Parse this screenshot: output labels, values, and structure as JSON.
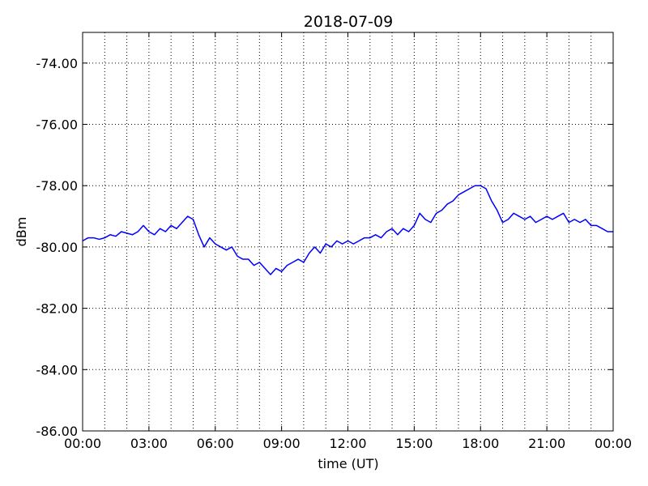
{
  "chart_data": {
    "type": "line",
    "title": "2018-07-09",
    "xlabel": "time (UT)",
    "ylabel": "dBm",
    "x": [
      0,
      0.25,
      0.5,
      0.75,
      1,
      1.25,
      1.5,
      1.75,
      2,
      2.25,
      2.5,
      2.75,
      3,
      3.25,
      3.5,
      3.75,
      4,
      4.25,
      4.5,
      4.75,
      5,
      5.25,
      5.5,
      5.75,
      6,
      6.25,
      6.5,
      6.75,
      7,
      7.25,
      7.5,
      7.75,
      8,
      8.25,
      8.5,
      8.75,
      9,
      9.25,
      9.5,
      9.75,
      10,
      10.25,
      10.5,
      10.75,
      11,
      11.25,
      11.5,
      11.75,
      12,
      12.25,
      12.5,
      12.75,
      13,
      13.25,
      13.5,
      13.75,
      14,
      14.25,
      14.5,
      14.75,
      15,
      15.25,
      15.5,
      15.75,
      16,
      16.25,
      16.5,
      16.75,
      17,
      17.25,
      17.5,
      17.75,
      18,
      18.25,
      18.5,
      18.75,
      19,
      19.25,
      19.5,
      19.75,
      20,
      20.25,
      20.5,
      20.75,
      21,
      21.25,
      21.5,
      21.75,
      22,
      22.25,
      22.5,
      22.75,
      23,
      23.25,
      23.5,
      23.75,
      24
    ],
    "series": [
      {
        "color": "#0000ff",
        "values": [
          -79.8,
          -79.7,
          -79.7,
          -79.75,
          -79.7,
          -79.6,
          -79.65,
          -79.5,
          -79.55,
          -79.6,
          -79.5,
          -79.3,
          -79.5,
          -79.6,
          -79.4,
          -79.5,
          -79.3,
          -79.4,
          -79.2,
          -79.0,
          -79.1,
          -79.6,
          -80.0,
          -79.7,
          -79.9,
          -80.0,
          -80.1,
          -80.0,
          -80.3,
          -80.4,
          -80.4,
          -80.6,
          -80.5,
          -80.7,
          -80.9,
          -80.7,
          -80.8,
          -80.6,
          -80.5,
          -80.4,
          -80.5,
          -80.2,
          -80.0,
          -80.2,
          -79.9,
          -80.0,
          -79.8,
          -79.9,
          -79.8,
          -79.9,
          -79.8,
          -79.7,
          -79.7,
          -79.6,
          -79.7,
          -79.5,
          -79.4,
          -79.6,
          -79.4,
          -79.5,
          -79.3,
          -78.9,
          -79.1,
          -79.2,
          -78.9,
          -78.8,
          -78.6,
          -78.5,
          -78.3,
          -78.2,
          -78.1,
          -78.0,
          -78.0,
          -78.1,
          -78.5,
          -78.8,
          -79.2,
          -79.1,
          -78.9,
          -79.0,
          -79.1,
          -79.0,
          -79.2,
          -79.1,
          -79.0,
          -79.1,
          -79.0,
          -78.9,
          -79.2,
          -79.1,
          -79.2,
          -79.1,
          -79.3,
          -79.3,
          -79.4,
          -79.5,
          -79.5
        ]
      }
    ],
    "xlim": [
      0,
      24
    ],
    "xticks": [
      {
        "value": 0,
        "label": "00:00"
      },
      {
        "value": 3,
        "label": "03:00"
      },
      {
        "value": 6,
        "label": "06:00"
      },
      {
        "value": 9,
        "label": "09:00"
      },
      {
        "value": 12,
        "label": "12:00"
      },
      {
        "value": 15,
        "label": "15:00"
      },
      {
        "value": 18,
        "label": "18:00"
      },
      {
        "value": 21,
        "label": "21:00"
      },
      {
        "value": 24,
        "label": "00:00"
      }
    ],
    "xminor_ticks": [
      1,
      2,
      4,
      5,
      7,
      8,
      10,
      11,
      13,
      14,
      16,
      17,
      19,
      20,
      22,
      23
    ],
    "ylim": [
      -86,
      -73
    ],
    "yticks": [
      {
        "value": -86,
        "label": "-86.00"
      },
      {
        "value": -84,
        "label": "-84.00"
      },
      {
        "value": -82,
        "label": "-82.00"
      },
      {
        "value": -80,
        "label": "-80.00"
      },
      {
        "value": -78,
        "label": "-78.00"
      },
      {
        "value": -76,
        "label": "-76.00"
      },
      {
        "value": -74,
        "label": "-74.00"
      }
    ],
    "grid": true
  }
}
